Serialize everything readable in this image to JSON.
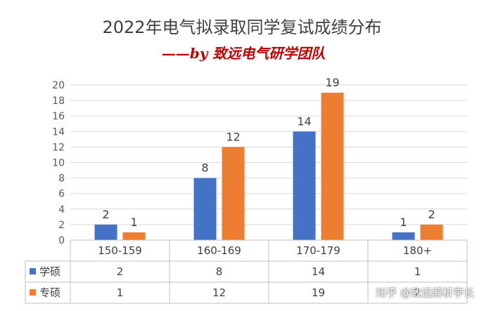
{
  "chart_data": {
    "type": "bar",
    "title": "2022年电气拟录取同学复试成绩分布",
    "subtitle": "——by 致远电气研学团队",
    "categories": [
      "150-159",
      "160-169",
      "170-179",
      "180+"
    ],
    "series": [
      {
        "name": "学硕",
        "values": [
          2,
          8,
          14,
          1
        ],
        "color": "#4472C4"
      },
      {
        "name": "专硕",
        "values": [
          1,
          12,
          19,
          2
        ],
        "color": "#ED7D31"
      }
    ],
    "ylim": [
      0,
      20
    ],
    "yticks": [
      0,
      2,
      4,
      6,
      8,
      10,
      12,
      14,
      16,
      18,
      20
    ],
    "grid": true,
    "legend_position": "bottom-table",
    "data_table": true,
    "subtitle_color": "#C00000"
  },
  "watermark": "知乎 @致远解析学长"
}
